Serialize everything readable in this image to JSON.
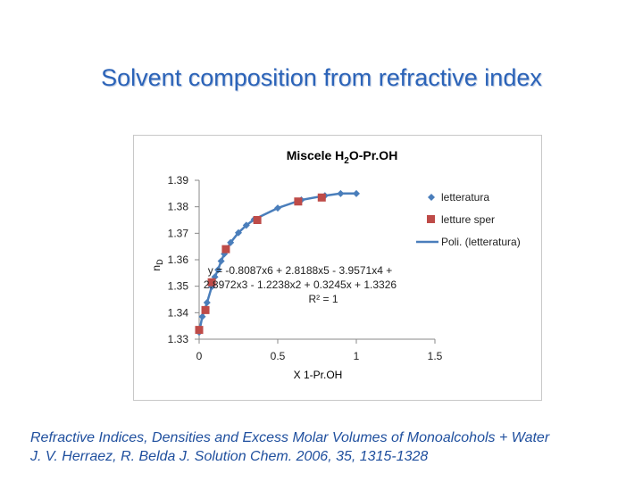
{
  "slide": {
    "title": "Solvent composition from refractive index",
    "caption_line1": "Refractive Indices, Densities and Excess Molar Volumes of Monoalcohols + Water",
    "caption_line2": "J. V. Herraez, R. Belda J. Solution Chem. 2006, 35, 1315-1328"
  },
  "chart_data": {
    "type": "scatter",
    "title": "Miscele H2O-Pr.OH",
    "title_parts": {
      "prefix": "Miscele H",
      "subscript": "2",
      "suffix": "O-Pr.OH"
    },
    "xlabel": "X 1-Pr.OH",
    "ylabel": "nD",
    "ylabel_parts": {
      "main": "n",
      "subscript": "D"
    },
    "xlim": [
      0,
      1.5
    ],
    "ylim": [
      1.33,
      1.39
    ],
    "xticks": [
      0,
      0.5,
      1,
      1.5
    ],
    "yticks": [
      1.33,
      1.34,
      1.35,
      1.36,
      1.37,
      1.38,
      1.39
    ],
    "xtick_labels": [
      "0",
      "0.5",
      "1",
      "1.5"
    ],
    "ytick_labels": [
      "1.33",
      "1.34",
      "1.35",
      "1.36",
      "1.37",
      "1.38",
      "1.39"
    ],
    "legend_position": "right",
    "grid": false,
    "series": [
      {
        "name": "letteratura",
        "marker": "diamond",
        "color": "#4a7ebb",
        "x": [
          0.0,
          0.02,
          0.05,
          0.08,
          0.1,
          0.12,
          0.14,
          0.16,
          0.2,
          0.25,
          0.3,
          0.35,
          0.5,
          0.65,
          0.8,
          0.9,
          1.0
        ],
        "y": [
          1.3326,
          1.3385,
          1.3438,
          1.3498,
          1.3535,
          1.3562,
          1.3595,
          1.3622,
          1.3665,
          1.3702,
          1.373,
          1.3752,
          1.3795,
          1.3826,
          1.3842,
          1.385,
          1.385
        ]
      },
      {
        "name": "letture sper",
        "marker": "square",
        "color": "#be4b48",
        "x": [
          0.0,
          0.04,
          0.08,
          0.17,
          0.37,
          0.63,
          0.78
        ],
        "y": [
          1.3335,
          1.341,
          1.3515,
          1.364,
          1.375,
          1.382,
          1.3835
        ]
      },
      {
        "name": "Poli. (letteratura)",
        "marker": "line",
        "color": "#4a7ebb"
      }
    ],
    "annotation": {
      "line1": "y = -0.8087x6 + 2.8188x5 - 3.9571x4 +",
      "line2": "2.8972x3 - 1.2238x2 + 0.3245x + 1.3326",
      "line3": "R² = 1"
    },
    "fit_coefficients": [
      -0.8087,
      2.8188,
      -3.9571,
      2.8972,
      -1.2238,
      0.3245,
      1.3326
    ]
  }
}
